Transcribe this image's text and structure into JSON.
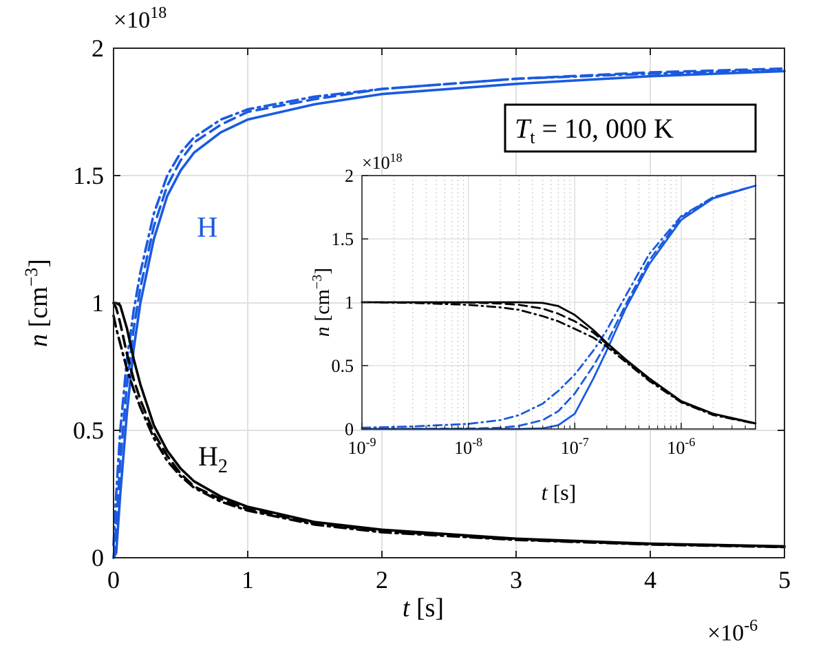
{
  "annotation": {
    "label_main": "T",
    "label_sub": "t",
    "label_rest": " = 10, 000 K"
  },
  "main_axes": {
    "y_multiplier_base": "×10",
    "y_multiplier_exp": "18",
    "x_multiplier_base": "×10",
    "x_multiplier_exp": "-6",
    "ylabel_var": "n",
    "ylabel_unit_open": " [cm",
    "ylabel_unit_exp": "−3",
    "ylabel_unit_close": "]",
    "xlabel_var": "t",
    "xlabel_unit": " [s]",
    "xticks": [
      "0",
      "1",
      "2",
      "3",
      "4",
      "5"
    ],
    "yticks": [
      "0",
      "0.5",
      "1",
      "1.5",
      "2"
    ]
  },
  "inset_axes": {
    "y_multiplier_base": "×10",
    "y_multiplier_exp": "18",
    "ylabel_var": "n",
    "ylabel_unit_open": " [cm",
    "ylabel_unit_exp": "−3",
    "ylabel_unit_close": "]",
    "xlabel_var": "t",
    "xlabel_unit": " [s]",
    "xticks_base": "10",
    "xticks_exp": [
      "-9",
      "-8",
      "-7",
      "-6"
    ],
    "yticks": [
      "0",
      "0.5",
      "1",
      "1.5",
      "2"
    ]
  },
  "series_labels": {
    "H": "H",
    "H2_main": "H",
    "H2_sub": "2"
  },
  "colors": {
    "blue": "#1a5ae0",
    "black": "#000000",
    "grid": "#e0e0e0",
    "minor_grid": "#c8c8c8"
  },
  "chart_data": [
    {
      "type": "line",
      "x_units": "s",
      "y_units": "cm^-3",
      "xlim": [
        0,
        5e-06
      ],
      "ylim": [
        0,
        2e+18
      ],
      "x_scale_factor": 1e-06,
      "y_scale_factor": 1e+18,
      "xlabel": "t [s]",
      "ylabel": "n [cm^-3]",
      "grid": true,
      "series": [
        {
          "name": "H",
          "color": "#1a5ae0",
          "style": "solid",
          "x": [
            0,
            0.02,
            0.05,
            0.1,
            0.15,
            0.2,
            0.3,
            0.4,
            0.5,
            0.6,
            0.8,
            1.0,
            1.5,
            2.0,
            3.0,
            4.0,
            5.0
          ],
          "y": [
            0,
            0.02,
            0.25,
            0.57,
            0.82,
            1.0,
            1.25,
            1.42,
            1.52,
            1.59,
            1.67,
            1.72,
            1.78,
            1.82,
            1.86,
            1.89,
            1.91
          ]
        },
        {
          "color": "#1a5ae0",
          "style": "dashed",
          "x": [
            0,
            0.02,
            0.05,
            0.1,
            0.15,
            0.2,
            0.3,
            0.4,
            0.5,
            0.6,
            0.8,
            1.0,
            1.5,
            2.0,
            3.0,
            4.0,
            5.0
          ],
          "y": [
            0,
            0.12,
            0.38,
            0.68,
            0.9,
            1.06,
            1.3,
            1.46,
            1.56,
            1.63,
            1.7,
            1.75,
            1.8,
            1.84,
            1.88,
            1.905,
            1.92
          ]
        },
        {
          "color": "#1a5ae0",
          "style": "dashdot",
          "x": [
            0,
            0.02,
            0.05,
            0.1,
            0.15,
            0.2,
            0.3,
            0.4,
            0.5,
            0.6,
            0.8,
            1.0,
            1.5,
            2.0,
            3.0,
            4.0,
            5.0
          ],
          "y": [
            0.05,
            0.25,
            0.5,
            0.78,
            0.97,
            1.12,
            1.35,
            1.5,
            1.59,
            1.65,
            1.72,
            1.76,
            1.81,
            1.84,
            1.88,
            1.9,
            1.915
          ]
        },
        {
          "name": "H2",
          "color": "#000000",
          "style": "solid",
          "x": [
            0,
            0.02,
            0.05,
            0.1,
            0.15,
            0.2,
            0.3,
            0.4,
            0.5,
            0.6,
            0.8,
            1.0,
            1.5,
            2.0,
            3.0,
            4.0,
            5.0
          ],
          "y": [
            1.0,
            1.0,
            0.99,
            0.9,
            0.78,
            0.68,
            0.52,
            0.42,
            0.35,
            0.3,
            0.24,
            0.2,
            0.14,
            0.11,
            0.075,
            0.055,
            0.045
          ]
        },
        {
          "color": "#000000",
          "style": "dashed",
          "x": [
            0,
            0.02,
            0.05,
            0.1,
            0.15,
            0.2,
            0.3,
            0.4,
            0.5,
            0.6,
            0.8,
            1.0,
            1.5,
            2.0,
            3.0,
            4.0,
            5.0
          ],
          "y": [
            1.0,
            0.98,
            0.92,
            0.8,
            0.7,
            0.62,
            0.49,
            0.4,
            0.33,
            0.28,
            0.23,
            0.19,
            0.135,
            0.105,
            0.072,
            0.053,
            0.043
          ]
        },
        {
          "color": "#000000",
          "style": "dashdot",
          "x": [
            0,
            0.02,
            0.05,
            0.1,
            0.15,
            0.2,
            0.3,
            0.4,
            0.5,
            0.6,
            0.8,
            1.0,
            1.5,
            2.0,
            3.0,
            4.0,
            5.0
          ],
          "y": [
            0.95,
            0.9,
            0.84,
            0.74,
            0.66,
            0.59,
            0.47,
            0.38,
            0.32,
            0.275,
            0.22,
            0.185,
            0.13,
            0.1,
            0.07,
            0.052,
            0.042
          ]
        }
      ]
    },
    {
      "type": "line",
      "x_scale": "log",
      "x_units": "s",
      "y_units": "cm^-3",
      "xlim": [
        1e-09,
        5e-06
      ],
      "ylim": [
        0,
        2e+18
      ],
      "y_scale_factor": 1e+18,
      "xlabel": "t [s]",
      "ylabel": "n [cm^-3]",
      "grid": true,
      "series": [
        {
          "name": "H",
          "color": "#1a5ae0",
          "style": "solid",
          "x": [
            1e-09,
            1e-08,
            3e-08,
            5e-08,
            7e-08,
            1e-07,
            1.5e-07,
            2e-07,
            3e-07,
            5e-07,
            1e-06,
            2e-06,
            5e-06
          ],
          "y": [
            0,
            0,
            0,
            0.005,
            0.03,
            0.12,
            0.4,
            0.62,
            0.95,
            1.3,
            1.65,
            1.82,
            1.92
          ]
        },
        {
          "color": "#1a5ae0",
          "style": "dashed",
          "x": [
            1e-09,
            1e-08,
            2e-08,
            3e-08,
            5e-08,
            7e-08,
            1e-07,
            1.5e-07,
            2e-07,
            3e-07,
            5e-07,
            1e-06,
            2e-06,
            5e-06
          ],
          "y": [
            0,
            0.003,
            0.01,
            0.025,
            0.07,
            0.14,
            0.28,
            0.5,
            0.68,
            0.98,
            1.33,
            1.67,
            1.83,
            1.92
          ]
        },
        {
          "color": "#1a5ae0",
          "style": "dashdot",
          "x": [
            1e-09,
            3e-09,
            1e-08,
            2e-08,
            3e-08,
            5e-08,
            7e-08,
            1e-07,
            1.5e-07,
            2e-07,
            3e-07,
            5e-07,
            1e-06,
            2e-06,
            5e-06
          ],
          "y": [
            0.01,
            0.02,
            0.04,
            0.07,
            0.11,
            0.2,
            0.3,
            0.43,
            0.62,
            0.78,
            1.05,
            1.38,
            1.68,
            1.83,
            1.92
          ]
        },
        {
          "name": "H2",
          "color": "#000000",
          "style": "solid",
          "x": [
            1e-09,
            1e-08,
            3e-08,
            5e-08,
            7e-08,
            1e-07,
            1.5e-07,
            2e-07,
            3e-07,
            5e-07,
            1e-06,
            2e-06,
            5e-06
          ],
          "y": [
            1.0,
            1.0,
            1.0,
            0.995,
            0.97,
            0.9,
            0.78,
            0.68,
            0.55,
            0.4,
            0.22,
            0.12,
            0.045
          ]
        },
        {
          "color": "#000000",
          "style": "dashed",
          "x": [
            1e-09,
            1e-08,
            2e-08,
            3e-08,
            5e-08,
            7e-08,
            1e-07,
            1.5e-07,
            2e-07,
            3e-07,
            5e-07,
            1e-06,
            2e-06,
            5e-06
          ],
          "y": [
            1.0,
            0.998,
            0.99,
            0.98,
            0.95,
            0.91,
            0.85,
            0.76,
            0.67,
            0.54,
            0.39,
            0.215,
            0.115,
            0.043
          ]
        },
        {
          "color": "#000000",
          "style": "dashdot",
          "x": [
            1e-09,
            3e-09,
            1e-08,
            2e-08,
            3e-08,
            5e-08,
            7e-08,
            1e-07,
            1.5e-07,
            2e-07,
            3e-07,
            5e-07,
            1e-06,
            2e-06,
            5e-06
          ],
          "y": [
            1.0,
            0.995,
            0.98,
            0.96,
            0.94,
            0.89,
            0.85,
            0.79,
            0.72,
            0.65,
            0.53,
            0.38,
            0.21,
            0.11,
            0.042
          ]
        }
      ]
    }
  ]
}
